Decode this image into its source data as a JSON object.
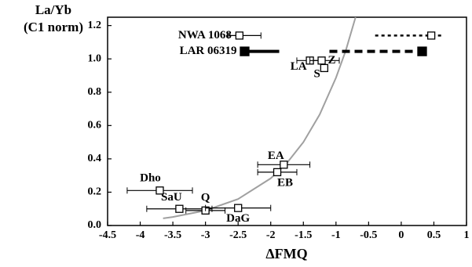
{
  "chart_data": {
    "type": "scatter",
    "y_label_lines": [
      "La/Yb",
      "(C1 norm)"
    ],
    "x_label": "ΔFMQ",
    "xlim": [
      -4.5,
      1
    ],
    "ylim": [
      0,
      1.25
    ],
    "xticks": [
      -4.5,
      -4,
      -3.5,
      -3,
      -2.5,
      -2,
      -1.5,
      -1,
      -0.5,
      0,
      0.5,
      1
    ],
    "yticks": [
      {
        "value": 0,
        "label": "0.0"
      },
      0.2,
      0.4,
      0.6,
      0.8,
      {
        "value": 1,
        "label": "1.0"
      },
      1.2
    ],
    "curve": {
      "color": "#a0a0a0",
      "x": [
        -3.65,
        -3.5,
        -3,
        -2.5,
        -2,
        -1.75,
        -1.5,
        -1.25,
        -1,
        -0.85,
        -0.7
      ],
      "y": [
        0.043,
        0.051,
        0.09,
        0.159,
        0.283,
        0.376,
        0.5,
        0.666,
        0.887,
        1.05,
        1.25
      ]
    },
    "points": [
      {
        "label": "NWA 1068",
        "x": -2.48,
        "y": 1.14,
        "xrange": [
          -2.65,
          -2.15
        ],
        "marker": "open",
        "style": "solid"
      },
      {
        "label": "LAR 06319",
        "x": -2.4,
        "y": 1.045,
        "xrange": [
          -2.4,
          -1.87
        ],
        "marker": "filled",
        "style": "thick"
      },
      {
        "label": null,
        "x": 0.46,
        "y": 1.14,
        "xrange": [
          -0.4,
          0.65
        ],
        "marker": "open",
        "style": "dotted"
      },
      {
        "label": null,
        "x": 0.32,
        "y": 1.045,
        "xrange": [
          -1.1,
          0.42
        ],
        "marker": "filled",
        "style": "dashed"
      },
      {
        "label": "LA",
        "x": -1.4,
        "y": 0.99,
        "xrange": [
          -1.6,
          -1.2
        ],
        "marker": "open",
        "style": "solid"
      },
      {
        "label": "Z",
        "x": -1.22,
        "y": 0.99,
        "xrange": [
          -1.4,
          -0.95
        ],
        "marker": "open",
        "style": "solid"
      },
      {
        "label": "S",
        "x": -1.18,
        "y": 0.945,
        "xrange": null,
        "marker": "open",
        "style": "solid"
      },
      {
        "label": "EA",
        "x": -1.8,
        "y": 0.365,
        "xrange": [
          -2.2,
          -1.4
        ],
        "marker": "open",
        "style": "solid"
      },
      {
        "label": "EB",
        "x": -1.9,
        "y": 0.32,
        "xrange": [
          -2.2,
          -1.6
        ],
        "marker": "open",
        "style": "solid"
      },
      {
        "label": "Dho",
        "x": -3.7,
        "y": 0.21,
        "xrange": [
          -4.2,
          -3.2
        ],
        "marker": "open",
        "style": "solid"
      },
      {
        "label": "SaU",
        "x": -3.4,
        "y": 0.1,
        "xrange": [
          -3.9,
          -2.9
        ],
        "marker": "open",
        "style": "solid"
      },
      {
        "label": "Q",
        "x": -3.0,
        "y": 0.09,
        "xrange": [
          -3.3,
          -2.7
        ],
        "marker": "open",
        "style": "solid"
      },
      {
        "label": "DaG",
        "x": -2.5,
        "y": 0.105,
        "xrange": [
          -3.0,
          -2.0
        ],
        "marker": "open",
        "style": "solid"
      }
    ]
  }
}
